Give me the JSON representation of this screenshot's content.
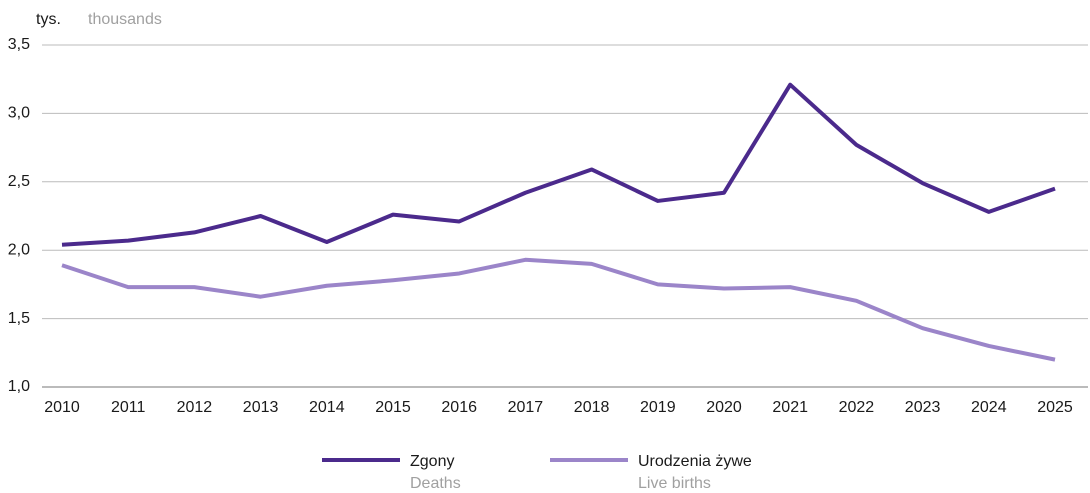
{
  "chart_data": {
    "type": "line",
    "unit": "tys.",
    "unit_en": "thousands",
    "categories": [
      "2010",
      "2011",
      "2012",
      "2013",
      "2014",
      "2015",
      "2016",
      "2017",
      "2018",
      "2019",
      "2020",
      "2021",
      "2022",
      "2023",
      "2024",
      "2025"
    ],
    "series": [
      {
        "name": "Zgony",
        "name_en": "Deaths",
        "color": "#4b2a8c",
        "values": [
          2.04,
          2.07,
          2.13,
          2.25,
          2.06,
          2.26,
          2.21,
          2.42,
          2.59,
          2.36,
          2.42,
          3.21,
          2.77,
          2.49,
          2.28,
          2.45
        ]
      },
      {
        "name": "Urodzenia żywe",
        "name_en": "Live births",
        "color": "#9b85c9",
        "values": [
          1.89,
          1.73,
          1.73,
          1.66,
          1.74,
          1.78,
          1.83,
          1.93,
          1.9,
          1.75,
          1.72,
          1.73,
          1.63,
          1.43,
          1.3,
          1.2
        ]
      }
    ],
    "ylim": [
      1.0,
      3.5
    ],
    "yticks": [
      {
        "value": 1.0,
        "label": "1,0"
      },
      {
        "value": 1.5,
        "label": "1,5"
      },
      {
        "value": 2.0,
        "label": "2,0"
      },
      {
        "value": 2.5,
        "label": "2,5"
      },
      {
        "value": 3.0,
        "label": "3,0"
      },
      {
        "value": 3.5,
        "label": "3,5"
      }
    ],
    "grid": true
  }
}
